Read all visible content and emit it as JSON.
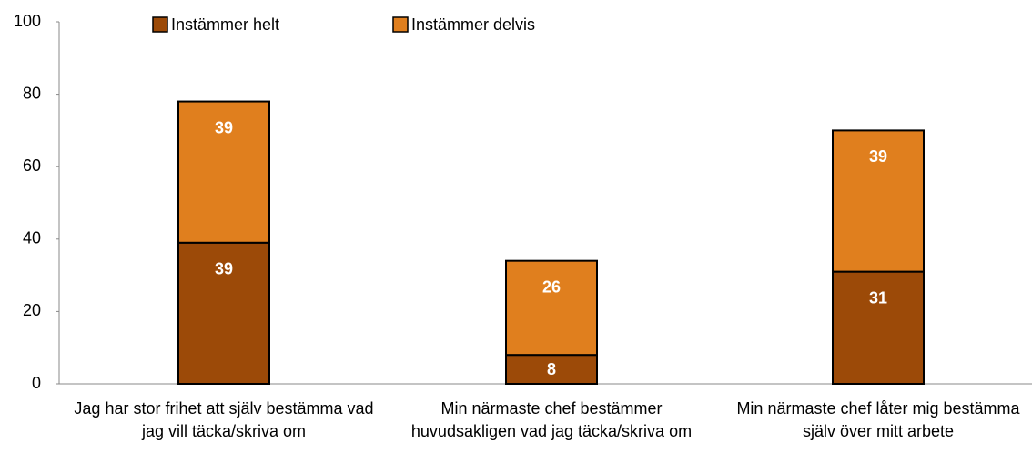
{
  "chart_data": {
    "type": "stacked_bar",
    "categories": [
      "Jag har stor frihet att själv bestämma vad jag vill täcka/skriva om",
      "Min närmaste chef bestämmer huvudsakligen vad jag täcka/skriva om",
      "Min närmaste chef låter mig bestämma själv över mitt arbete"
    ],
    "series": [
      {
        "name": "Instämmer helt",
        "color": "#9c4a08",
        "values": [
          39,
          8,
          31
        ]
      },
      {
        "name": "Instämmer delvis",
        "color": "#e07f1e",
        "values": [
          39,
          26,
          39
        ]
      }
    ],
    "ylim": [
      0,
      100
    ],
    "yticks": [
      0,
      20,
      40,
      60,
      80,
      100
    ],
    "legend": "top"
  }
}
